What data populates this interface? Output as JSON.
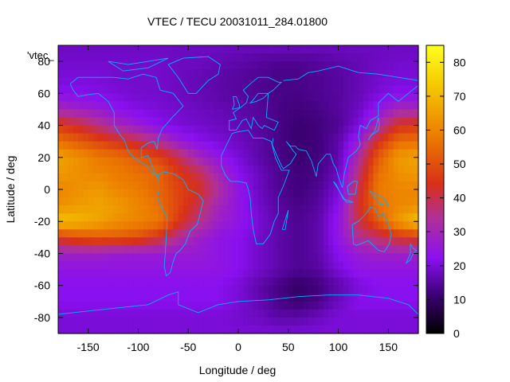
{
  "chart_data": {
    "type": "heatmap",
    "title": "VTEC / TECU 20031011_284.01800",
    "xlabel": "Longitude / deg",
    "ylabel": "Latitude / deg",
    "xlim": [
      -180,
      180
    ],
    "ylim": [
      -90,
      90
    ],
    "x_ticks": [
      -150,
      -100,
      -50,
      0,
      50,
      100,
      150
    ],
    "y_ticks": [
      -80,
      -60,
      -40,
      -20,
      0,
      20,
      40,
      60,
      80
    ],
    "colorbar": {
      "range": [
        0,
        85
      ],
      "ticks": [
        0,
        10,
        20,
        30,
        40,
        50,
        60,
        70,
        80
      ],
      "palette": "black-purple-red-orange-yellow"
    },
    "legend_entry": "'vtec_",
    "overlay": "world coastlines",
    "grid_note": "values estimated from color (TECU); rows lat 90 to -90 step 10, cols lon -180 to 180 step 20",
    "lon_centers": [
      -180,
      -160,
      -140,
      -120,
      -100,
      -80,
      -60,
      -40,
      -20,
      0,
      20,
      40,
      60,
      80,
      100,
      120,
      140,
      160,
      180
    ],
    "lat_centers": [
      90,
      80,
      70,
      60,
      50,
      40,
      30,
      20,
      10,
      0,
      -10,
      -20,
      -30,
      -40,
      -50,
      -60,
      -70,
      -80,
      -90
    ],
    "values": [
      [
        18,
        18,
        18,
        18,
        18,
        18,
        18,
        18,
        18,
        18,
        18,
        18,
        18,
        18,
        18,
        18,
        18,
        18,
        18
      ],
      [
        19,
        19,
        19,
        19,
        19,
        19,
        18,
        18,
        17,
        16,
        15,
        14,
        14,
        15,
        16,
        17,
        18,
        19,
        19
      ],
      [
        20,
        20,
        20,
        19,
        19,
        19,
        18,
        17,
        16,
        15,
        14,
        13,
        13,
        14,
        15,
        17,
        19,
        20,
        20
      ],
      [
        22,
        22,
        21,
        20,
        19,
        19,
        18,
        17,
        16,
        15,
        14,
        13,
        13,
        14,
        15,
        17,
        20,
        22,
        22
      ],
      [
        30,
        28,
        26,
        23,
        21,
        20,
        19,
        18,
        17,
        16,
        15,
        13,
        12,
        13,
        15,
        18,
        24,
        30,
        30
      ],
      [
        46,
        42,
        36,
        30,
        26,
        22,
        20,
        19,
        18,
        17,
        15,
        13,
        11,
        12,
        14,
        20,
        32,
        44,
        46
      ],
      [
        56,
        52,
        48,
        44,
        40,
        34,
        26,
        22,
        20,
        18,
        16,
        13,
        11,
        12,
        16,
        26,
        44,
        55,
        56
      ],
      [
        66,
        62,
        58,
        56,
        52,
        48,
        40,
        30,
        24,
        20,
        16,
        13,
        11,
        12,
        16,
        32,
        52,
        64,
        66
      ],
      [
        64,
        62,
        60,
        58,
        56,
        54,
        46,
        40,
        30,
        22,
        18,
        14,
        12,
        13,
        18,
        36,
        56,
        62,
        64
      ],
      [
        60,
        62,
        64,
        60,
        58,
        54,
        48,
        44,
        34,
        24,
        18,
        14,
        12,
        14,
        20,
        40,
        58,
        60,
        60
      ],
      [
        62,
        64,
        66,
        64,
        60,
        56,
        48,
        40,
        30,
        24,
        19,
        15,
        13,
        15,
        22,
        42,
        56,
        60,
        62
      ],
      [
        72,
        70,
        66,
        62,
        60,
        58,
        46,
        36,
        28,
        24,
        20,
        16,
        14,
        16,
        24,
        40,
        52,
        64,
        72
      ],
      [
        46,
        50,
        52,
        52,
        50,
        44,
        34,
        28,
        24,
        22,
        19,
        16,
        14,
        16,
        24,
        34,
        38,
        44,
        46
      ],
      [
        28,
        28,
        28,
        26,
        26,
        26,
        26,
        26,
        24,
        22,
        19,
        16,
        14,
        16,
        22,
        26,
        28,
        28,
        28
      ],
      [
        24,
        24,
        24,
        24,
        24,
        24,
        24,
        24,
        24,
        22,
        19,
        16,
        14,
        15,
        20,
        24,
        24,
        24,
        24
      ],
      [
        22,
        22,
        22,
        22,
        22,
        22,
        22,
        22,
        22,
        20,
        16,
        13,
        10,
        12,
        16,
        20,
        22,
        22,
        22
      ],
      [
        22,
        22,
        22,
        22,
        22,
        22,
        22,
        22,
        22,
        20,
        17,
        13,
        11,
        13,
        18,
        22,
        22,
        22,
        22
      ],
      [
        20,
        20,
        20,
        20,
        20,
        20,
        20,
        20,
        20,
        19,
        18,
        16,
        16,
        18,
        20,
        20,
        20,
        20,
        20
      ],
      [
        20,
        20,
        20,
        20,
        20,
        20,
        20,
        20,
        20,
        20,
        20,
        20,
        20,
        20,
        20,
        20,
        20,
        20,
        20
      ]
    ]
  }
}
